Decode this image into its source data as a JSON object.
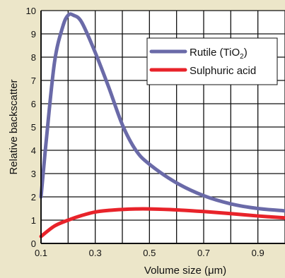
{
  "chart_data": {
    "type": "line",
    "xlabel": "Volume size (μm)",
    "ylabel": "Relative backscatter",
    "xlim": [
      0.1,
      1.0
    ],
    "ylim": [
      0,
      10
    ],
    "x_ticks": [
      "0.1",
      "0.3",
      "0.5",
      "0.7",
      "0.9"
    ],
    "y_ticks": [
      "0",
      "1",
      "2",
      "3",
      "4",
      "5",
      "6",
      "7",
      "8",
      "9",
      "10"
    ],
    "grid": true,
    "legend_position": "top-right",
    "series": [
      {
        "name": "Rutile (TiO2)",
        "name_main": "Rutile (TiO",
        "name_sub": "2",
        "name_end": ")",
        "color": "#6a6aa8",
        "x": [
          0.1,
          0.12,
          0.15,
          0.18,
          0.2,
          0.22,
          0.25,
          0.3,
          0.35,
          0.4,
          0.45,
          0.5,
          0.6,
          0.7,
          0.8,
          0.9,
          1.0
        ],
        "y": [
          2.0,
          4.5,
          7.8,
          9.3,
          9.8,
          9.8,
          9.5,
          8.2,
          6.7,
          5.1,
          4.0,
          3.4,
          2.6,
          2.05,
          1.7,
          1.5,
          1.4
        ]
      },
      {
        "name": "Sulphuric acid",
        "color": "#e8232a",
        "x": [
          0.1,
          0.15,
          0.2,
          0.25,
          0.3,
          0.35,
          0.4,
          0.45,
          0.5,
          0.6,
          0.7,
          0.8,
          0.9,
          1.0
        ],
        "y": [
          0.3,
          0.75,
          1.0,
          1.2,
          1.35,
          1.42,
          1.46,
          1.48,
          1.48,
          1.44,
          1.37,
          1.28,
          1.18,
          1.1
        ]
      }
    ]
  }
}
